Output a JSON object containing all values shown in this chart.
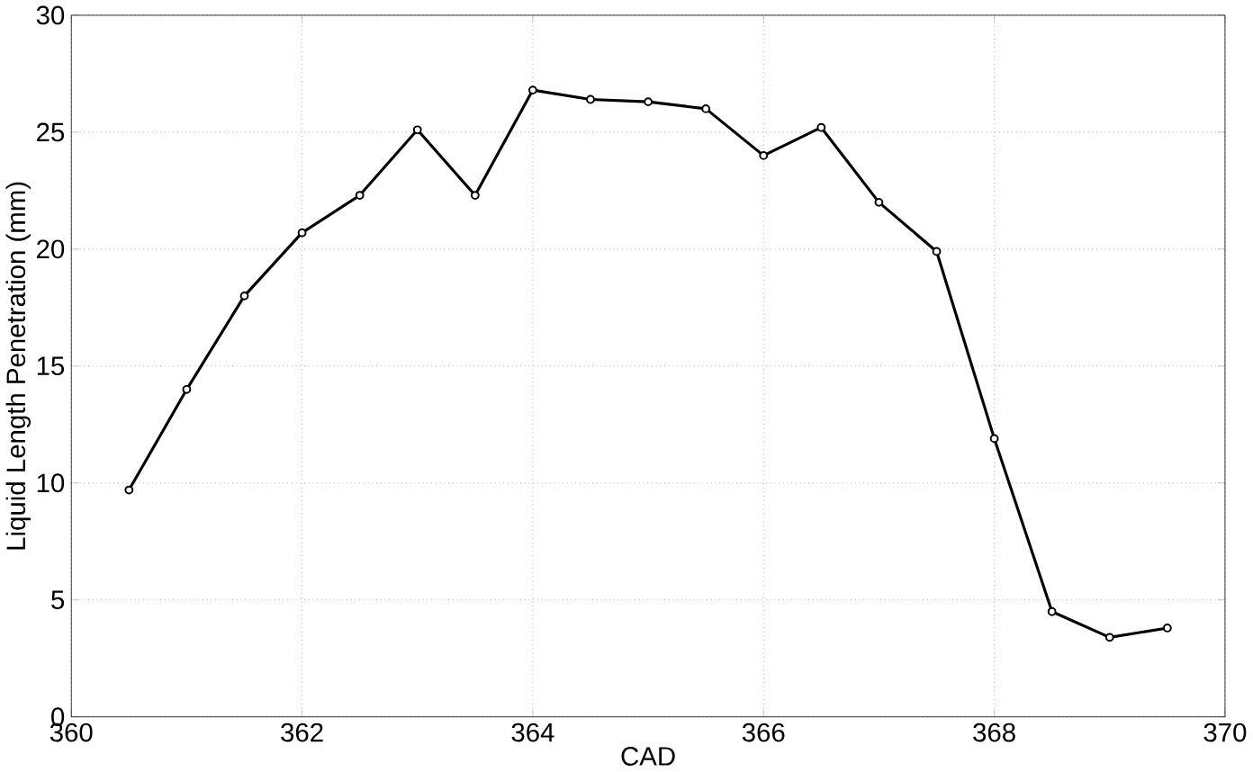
{
  "chart_data": {
    "type": "line",
    "xlabel": "CAD",
    "ylabel": "Liquid Length Penetration (mm)",
    "x": [
      360.5,
      361,
      361.5,
      362,
      362.5,
      363,
      363.5,
      364,
      364.5,
      365,
      365.5,
      366,
      366.5,
      367,
      367.5,
      368,
      368.5,
      369,
      369.5
    ],
    "values": [
      9.7,
      14,
      18,
      20.7,
      22.3,
      25.1,
      22.3,
      26.8,
      26.4,
      26.3,
      26,
      24,
      25.2,
      22,
      19.9,
      11.9,
      4.5,
      3.4,
      3.8
    ],
    "color": "#000000",
    "marker": "circle",
    "line_style": "solid",
    "grid": true,
    "xlim": [
      360,
      370
    ],
    "xticks": [
      360,
      362,
      364,
      366,
      368,
      370
    ],
    "ylim": [
      0,
      30
    ],
    "yticks": [
      0,
      5,
      10,
      15,
      20,
      25,
      30
    ]
  }
}
